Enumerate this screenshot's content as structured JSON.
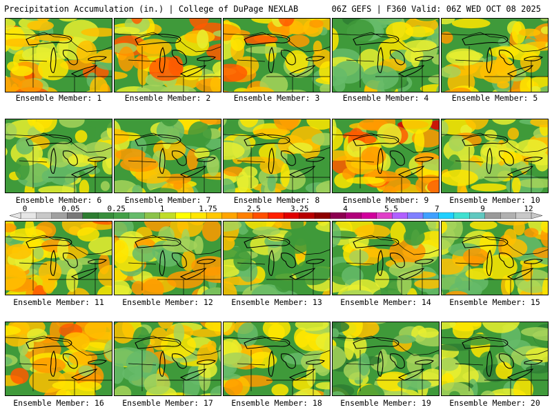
{
  "header": {
    "left": "Precipitation Accumulation (in.) | College of DuPage NEXLAB",
    "right": "06Z GEFS | F360 Valid: 06Z WED OCT 08 2025"
  },
  "colorbar": {
    "labels": [
      "0",
      "0.05",
      "0.25",
      "1",
      "1.75",
      "2.5",
      "3.25",
      "4",
      "5.5",
      "7",
      "9",
      "12"
    ],
    "colors": [
      "#e6e6e6",
      "#c8c8c8",
      "#a0a0a0",
      "#787878",
      "#2e7d32",
      "#388e3c",
      "#43a047",
      "#66bb6a",
      "#8bc34a",
      "#c0dc28",
      "#ffff00",
      "#ffe600",
      "#ffc800",
      "#ffa500",
      "#ff7f00",
      "#ff5000",
      "#ff2000",
      "#e00000",
      "#b80000",
      "#8c0000",
      "#8c0050",
      "#b0007a",
      "#d0009c",
      "#e040c8",
      "#b060ff",
      "#8080ff",
      "#40a0ff",
      "#20d0ff",
      "#40e0d0",
      "#60c8c0",
      "#9a9a9a",
      "#b0b0b0",
      "#c8c8c8"
    ]
  },
  "members": [
    {
      "label": "Ensemble Member: 1"
    },
    {
      "label": "Ensemble Member: 2"
    },
    {
      "label": "Ensemble Member: 3"
    },
    {
      "label": "Ensemble Member: 4"
    },
    {
      "label": "Ensemble Member: 5"
    },
    {
      "label": "Ensemble Member: 6"
    },
    {
      "label": "Ensemble Member: 7"
    },
    {
      "label": "Ensemble Member: 8"
    },
    {
      "label": "Ensemble Member: 9"
    },
    {
      "label": "Ensemble Member: 10"
    },
    {
      "label": "Ensemble Member: 11"
    },
    {
      "label": "Ensemble Member: 12"
    },
    {
      "label": "Ensemble Member: 13"
    },
    {
      "label": "Ensemble Member: 14"
    },
    {
      "label": "Ensemble Member: 15"
    },
    {
      "label": "Ensemble Member: 16"
    },
    {
      "label": "Ensemble Member: 17"
    },
    {
      "label": "Ensemble Member: 18"
    },
    {
      "label": "Ensemble Member: 19"
    },
    {
      "label": "Ensemble Member: 20"
    }
  ]
}
